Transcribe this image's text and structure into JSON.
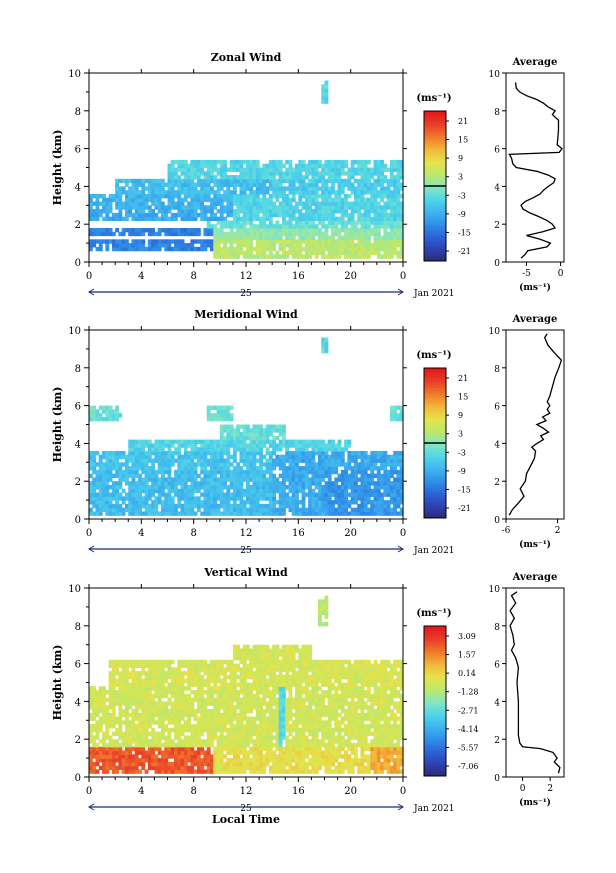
{
  "figure": {
    "date_label": "Jan 2021",
    "day_label": "25",
    "xlabel": "Local Time",
    "ylabel": "Height (km)",
    "colorbar_unit": "(ms⁻¹)",
    "profile_title": "Average",
    "profile_xlabel": "(ms⁻¹)"
  },
  "colors": {
    "colormap": [
      "#2a2a6a",
      "#2f3fae",
      "#2c62d8",
      "#2f8ee8",
      "#3fb4ee",
      "#4fd6e8",
      "#86e6c0",
      "#bde86a",
      "#e6e24a",
      "#f2b838",
      "#f07a2a",
      "#e8402a",
      "#e41818"
    ]
  },
  "chart_data": [
    {
      "type": "heatmap",
      "title": "Zonal Wind",
      "xlabel": "",
      "ylabel": "Height (km)",
      "xticks": [
        "0",
        "4",
        "8",
        "12",
        "16",
        "20",
        "0"
      ],
      "xlim": [
        0,
        24
      ],
      "ylim": [
        0,
        10
      ],
      "yticks": [
        "0",
        "2",
        "4",
        "6",
        "8",
        "10"
      ],
      "colorbar": {
        "ticks": [
          "21",
          "15",
          "9",
          "3",
          "-3",
          "-9",
          "-15",
          "-21"
        ],
        "range": [
          -24,
          24
        ]
      },
      "profile": {
        "title": "Average",
        "xticks": [
          "-5",
          "0"
        ],
        "xlim": [
          -8,
          0.5
        ],
        "points": [
          [
            -5.8,
            0.2
          ],
          [
            -5.2,
            0.4
          ],
          [
            -4.8,
            0.6
          ],
          [
            -2.0,
            0.8
          ],
          [
            -1.5,
            1.0
          ],
          [
            -3.0,
            1.2
          ],
          [
            -5.0,
            1.4
          ],
          [
            -2.6,
            1.6
          ],
          [
            -0.8,
            1.8
          ],
          [
            -1.2,
            2.0
          ],
          [
            -2.0,
            2.2
          ],
          [
            -3.2,
            2.4
          ],
          [
            -4.5,
            2.6
          ],
          [
            -5.5,
            2.8
          ],
          [
            -5.8,
            3.0
          ],
          [
            -5.2,
            3.2
          ],
          [
            -4.0,
            3.4
          ],
          [
            -3.0,
            3.6
          ],
          [
            -2.5,
            3.8
          ],
          [
            -1.8,
            4.0
          ],
          [
            -1.0,
            4.2
          ],
          [
            -0.8,
            4.4
          ],
          [
            -1.8,
            4.6
          ],
          [
            -3.5,
            4.8
          ],
          [
            -6.5,
            5.0
          ],
          [
            -7.0,
            5.2
          ],
          [
            -7.2,
            5.5
          ],
          [
            -7.5,
            5.7
          ],
          [
            -0.2,
            5.8
          ],
          [
            0.2,
            6.0
          ],
          [
            -0.5,
            6.2
          ],
          [
            -0.4,
            6.6
          ],
          [
            -0.3,
            7.0
          ],
          [
            -0.3,
            7.5
          ],
          [
            -1.2,
            7.8
          ],
          [
            -0.8,
            8.0
          ],
          [
            -1.8,
            8.2
          ],
          [
            -2.5,
            8.4
          ],
          [
            -3.5,
            8.6
          ],
          [
            -5.0,
            8.8
          ],
          [
            -6.0,
            9.0
          ],
          [
            -6.5,
            9.2
          ],
          [
            -6.6,
            9.5
          ]
        ]
      }
    },
    {
      "type": "heatmap",
      "title": "Meridional Wind",
      "xlabel": "",
      "ylabel": "Height (km)",
      "xticks": [
        "0",
        "4",
        "8",
        "12",
        "16",
        "20",
        "0"
      ],
      "xlim": [
        0,
        24
      ],
      "ylim": [
        0,
        10
      ],
      "yticks": [
        "0",
        "2",
        "4",
        "6",
        "8",
        "10"
      ],
      "colorbar": {
        "ticks": [
          "21",
          "15",
          "9",
          "3",
          "-3",
          "-9",
          "-15",
          "-21"
        ],
        "range": [
          -24,
          24
        ]
      },
      "profile": {
        "title": "Average",
        "xticks": [
          "-6",
          "2"
        ],
        "xlim": [
          -6,
          3
        ],
        "points": [
          [
            -5.5,
            0.2
          ],
          [
            -5.0,
            0.5
          ],
          [
            -4.2,
            0.8
          ],
          [
            -3.2,
            1.2
          ],
          [
            -3.8,
            1.6
          ],
          [
            -3.0,
            2.0
          ],
          [
            -2.8,
            2.4
          ],
          [
            -2.2,
            2.8
          ],
          [
            -1.6,
            3.2
          ],
          [
            -1.4,
            3.6
          ],
          [
            -2.0,
            3.8
          ],
          [
            -1.2,
            4.0
          ],
          [
            -0.2,
            4.2
          ],
          [
            -0.6,
            4.4
          ],
          [
            0.6,
            4.6
          ],
          [
            -0.2,
            4.8
          ],
          [
            -1.2,
            5.0
          ],
          [
            0.2,
            5.2
          ],
          [
            -0.3,
            5.4
          ],
          [
            0.8,
            5.6
          ],
          [
            0.4,
            5.8
          ],
          [
            0.8,
            6.0
          ],
          [
            0.4,
            6.2
          ],
          [
            0.8,
            6.5
          ],
          [
            1.2,
            7.0
          ],
          [
            1.6,
            7.5
          ],
          [
            2.2,
            8.0
          ],
          [
            2.6,
            8.4
          ],
          [
            1.5,
            8.8
          ],
          [
            0.5,
            9.2
          ],
          [
            0.0,
            9.6
          ],
          [
            0.4,
            9.8
          ]
        ]
      }
    },
    {
      "type": "heatmap",
      "title": "Vertical Wind",
      "xlabel": "Local Time",
      "ylabel": "Height (km)",
      "xticks": [
        "0",
        "4",
        "8",
        "12",
        "16",
        "20",
        "0"
      ],
      "xlim": [
        0,
        24
      ],
      "ylim": [
        0,
        10
      ],
      "yticks": [
        "0",
        "2",
        "4",
        "6",
        "8",
        "10"
      ],
      "colorbar": {
        "ticks": [
          "3.09",
          "1.57",
          "0.14",
          "-1.28",
          "-2.71",
          "-4.14",
          "-5.57",
          "-7.06"
        ],
        "range": [
          -8,
          4.5
        ]
      },
      "profile": {
        "title": "Average",
        "xticks": [
          "0",
          "2"
        ],
        "xlim": [
          -1.2,
          3
        ],
        "points": [
          [
            2.6,
            0.2
          ],
          [
            2.7,
            0.5
          ],
          [
            2.3,
            0.8
          ],
          [
            2.5,
            1.0
          ],
          [
            2.2,
            1.3
          ],
          [
            1.3,
            1.5
          ],
          [
            0.0,
            1.6
          ],
          [
            -0.2,
            1.8
          ],
          [
            -0.3,
            2.2
          ],
          [
            -0.3,
            3.0
          ],
          [
            -0.3,
            4.0
          ],
          [
            -0.4,
            5.0
          ],
          [
            -0.3,
            5.8
          ],
          [
            -0.5,
            6.3
          ],
          [
            -0.8,
            6.7
          ],
          [
            -0.6,
            7.0
          ],
          [
            -0.7,
            7.5
          ],
          [
            -0.9,
            8.0
          ],
          [
            -0.6,
            8.4
          ],
          [
            -0.9,
            8.8
          ],
          [
            -0.5,
            9.2
          ],
          [
            -0.8,
            9.6
          ],
          [
            -0.4,
            9.8
          ]
        ]
      }
    }
  ]
}
